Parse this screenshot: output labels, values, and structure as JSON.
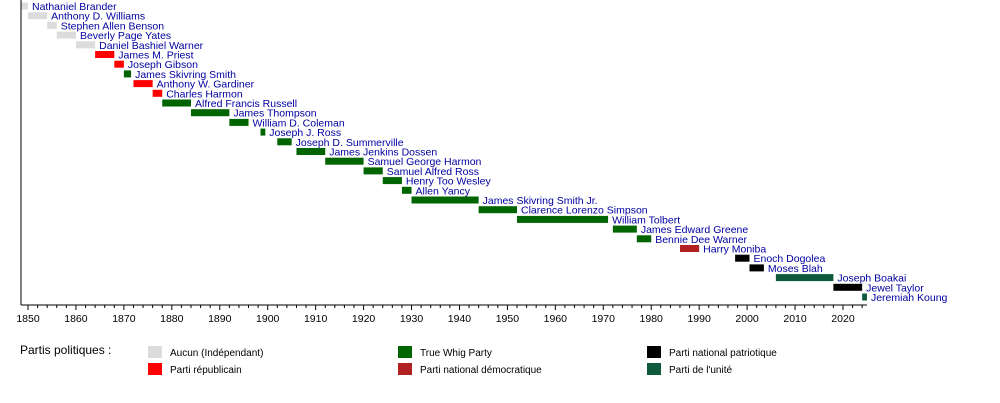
{
  "chart_data": {
    "type": "timeline",
    "title": "",
    "xlabel": "",
    "ylabel": "",
    "xlim": [
      1848.5,
      2025
    ],
    "x_ticks": [
      1850,
      1860,
      1870,
      1880,
      1890,
      1900,
      1910,
      1920,
      1930,
      1940,
      1950,
      1960,
      1970,
      1980,
      1990,
      2000,
      2010,
      2020
    ],
    "legend_title": "Partis politiques :",
    "legend_placement": "bottom",
    "parties": [
      {
        "id": "ind",
        "name": "Aucun (Indépendant)",
        "color": "#dcdcdc"
      },
      {
        "id": "rep",
        "name": "Parti républicain",
        "color": "#ff0000"
      },
      {
        "id": "tw",
        "name": "True Whig Party",
        "color": "#006400"
      },
      {
        "id": "ndp",
        "name": "Parti national démocratique",
        "color": "#b22222"
      },
      {
        "id": "npp",
        "name": "Parti national patriotique",
        "color": "#000000"
      },
      {
        "id": "up",
        "name": "Parti de l'unité",
        "color": "#0e5a3c"
      }
    ],
    "entries": [
      {
        "name": "Nathaniel Brander",
        "start": 1848.5,
        "end": 1850,
        "party": "ind"
      },
      {
        "name": "Anthony D. Williams",
        "start": 1850,
        "end": 1854,
        "party": "ind"
      },
      {
        "name": "Stephen Allen Benson",
        "start": 1854,
        "end": 1856,
        "party": "ind"
      },
      {
        "name": "Beverly Page Yates",
        "start": 1856,
        "end": 1860,
        "party": "ind"
      },
      {
        "name": "Daniel Bashiel Warner",
        "start": 1860,
        "end": 1864,
        "party": "ind"
      },
      {
        "name": "James M. Priest",
        "start": 1864,
        "end": 1868,
        "party": "rep"
      },
      {
        "name": "Joseph Gibson",
        "start": 1868,
        "end": 1870,
        "party": "rep"
      },
      {
        "name": "James Skivring Smith",
        "start": 1870,
        "end": 1871.5,
        "party": "tw"
      },
      {
        "name": "Anthony W. Gardiner",
        "start": 1872,
        "end": 1876,
        "party": "rep"
      },
      {
        "name": "Charles Harmon",
        "start": 1876,
        "end": 1878,
        "party": "rep"
      },
      {
        "name": "Alfred Francis Russell",
        "start": 1878,
        "end": 1884,
        "party": "tw"
      },
      {
        "name": "James Thompson",
        "start": 1884,
        "end": 1892,
        "party": "tw"
      },
      {
        "name": "William D. Coleman",
        "start": 1892,
        "end": 1896,
        "party": "tw"
      },
      {
        "name": "Joseph J. Ross",
        "start": 1898.5,
        "end": 1899.5,
        "party": "tw"
      },
      {
        "name": "Joseph D. Summerville",
        "start": 1902,
        "end": 1905,
        "party": "tw"
      },
      {
        "name": "James Jenkins Dossen",
        "start": 1906,
        "end": 1912,
        "party": "tw"
      },
      {
        "name": "Samuel George Harmon",
        "start": 1912,
        "end": 1920,
        "party": "tw"
      },
      {
        "name": "Samuel Alfred Ross",
        "start": 1920,
        "end": 1924,
        "party": "tw"
      },
      {
        "name": "Henry Too Wesley",
        "start": 1924,
        "end": 1928,
        "party": "tw"
      },
      {
        "name": "Allen Yancy",
        "start": 1928,
        "end": 1930,
        "party": "tw"
      },
      {
        "name": "James Skivring Smith Jr.",
        "start": 1930,
        "end": 1944,
        "party": "tw"
      },
      {
        "name": "Clarence Lorenzo Simpson",
        "start": 1944,
        "end": 1952,
        "party": "tw"
      },
      {
        "name": "William Tolbert",
        "start": 1952,
        "end": 1971,
        "party": "tw"
      },
      {
        "name": "James Edward Greene",
        "start": 1972,
        "end": 1977,
        "party": "tw"
      },
      {
        "name": "Bennie Dee Warner",
        "start": 1977,
        "end": 1980,
        "party": "tw"
      },
      {
        "name": "Harry Moniba",
        "start": 1986,
        "end": 1990,
        "party": "ndp"
      },
      {
        "name": "Enoch Dogolea",
        "start": 1997.5,
        "end": 2000.5,
        "party": "npp"
      },
      {
        "name": "Moses Blah",
        "start": 2000.5,
        "end": 2003.5,
        "party": "npp"
      },
      {
        "name": "Joseph Boakai",
        "start": 2006,
        "end": 2018,
        "party": "up"
      },
      {
        "name": "Jewel Taylor",
        "start": 2018,
        "end": 2024,
        "party": "npp"
      },
      {
        "name": "Jeremiah Koung",
        "start": 2024,
        "end": 2025,
        "party": "up"
      }
    ]
  }
}
